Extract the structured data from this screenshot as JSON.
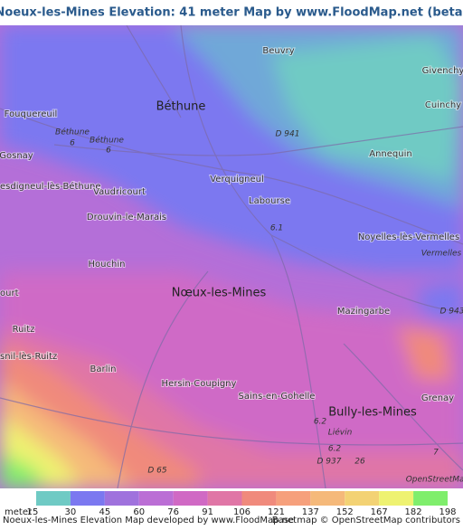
{
  "title": "Noeux-les-Mines Elevation: 41 meter Map by www.FloodMap.net (beta)",
  "map": {
    "labels": [
      "Beuvry",
      "Givenchy",
      "Cuinchy",
      "Fouquereuil",
      "Béthune",
      "Béthune",
      "Béthune",
      "6",
      "6",
      "D 941",
      "Gosnay",
      "Annequin",
      "esdigneul-lès-Béthune",
      "Vaudricourt",
      "Verquigneul",
      "Labourse",
      "6.1",
      "Drouvin-le-Marais",
      "Noyelles-lès-Vermelles",
      "Vermelles",
      "Houchin",
      "Nœux-les-Mines",
      "ourt",
      "D 943",
      "Mazingarbe",
      "Ruitz",
      "snil-lès-Ruitz",
      "Barlin",
      "Hersin-Coupigny",
      "Sains-en-Gohelle",
      "Bully-les-Mines",
      "Grenay",
      "6.2",
      "Liévin",
      "6.2",
      "D 937",
      "26",
      "7",
      "D 65",
      "OpenStreetMap"
    ],
    "legend": {
      "unit": "meter",
      "values": [
        15,
        30,
        45,
        60,
        76,
        91,
        106,
        121,
        137,
        152,
        167,
        182,
        198
      ],
      "colors": [
        "#6fcac4",
        "#7b78f0",
        "#9f72dd",
        "#bb6ed5",
        "#d069c4",
        "#e076a6",
        "#f08a7c",
        "#f6a07c",
        "#f5b97a",
        "#f3d274",
        "#eef271",
        "#7fee6c",
        "#5fdc62"
      ]
    }
  },
  "footer": {
    "left": "Noeux-les-Mines Elevation Map developed by www.FloodMap.net",
    "right": "Base map © OpenStreetMap contributors"
  }
}
